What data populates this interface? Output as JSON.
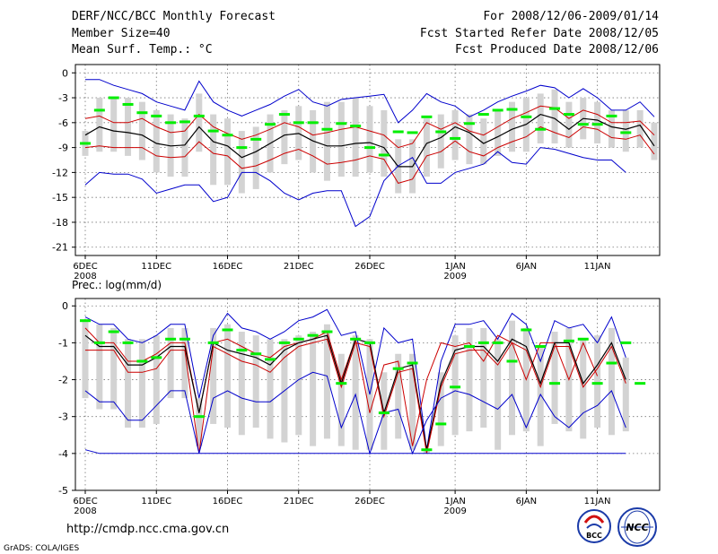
{
  "header": {
    "title": "DERF/NCC/BCC Monthly Forecast",
    "member_size": "Member Size=40",
    "variable": "Mean Surf. Temp.: °C",
    "period": "For 2008/12/06-2009/01/14",
    "started": "Fcst Started Refer Date 2008/12/05",
    "produced": "Fcst Produced Date 2008/12/06"
  },
  "footer": {
    "url": "http://cmdp.ncc.cma.gov.cn",
    "credit": "GrADS: COLA/IGES",
    "logo_bcc": "BCC",
    "logo_ncc": "NCC"
  },
  "colors": {
    "box": "#d3d3d3",
    "ensemble": "#00ee00",
    "mean": "#000000",
    "band": "#cc0000",
    "envelope": "#0000cc",
    "grid": "#777777"
  },
  "chart_data": [
    {
      "type": "line",
      "title": "Mean Surf. Temp.: °C",
      "x_start": "2008-12-06",
      "x_ticks": [
        "6DEC",
        "11DEC",
        "16DEC",
        "21DEC",
        "26DEC",
        "1JAN",
        "6JAN",
        "11JAN"
      ],
      "x_tick_days": [
        0,
        5,
        10,
        15,
        20,
        26,
        31,
        36
      ],
      "x_year_labels": [
        {
          "day": 0,
          "label": "2008"
        },
        {
          "day": 26,
          "label": "2009"
        }
      ],
      "ylim": [
        -22,
        1
      ],
      "y_ticks": [
        0,
        -3,
        -6,
        -9,
        -12,
        -15,
        -18,
        -21
      ],
      "series": [
        {
          "name": "max",
          "values": [
            -0.8,
            -0.8,
            -1.5,
            -2,
            -2.5,
            -3.5,
            -4,
            -4.5,
            -1,
            -3.5,
            -4.5,
            -5.2,
            -4.5,
            -3.8,
            -2.8,
            -2,
            -3.5,
            -4,
            -3.2,
            -3,
            -2.8,
            -2.6,
            -6,
            -4.5,
            -2.5,
            -3.5,
            -4,
            -5.3,
            -4.5,
            -3.5,
            -2.8,
            -2.2,
            -1.5,
            -1.8,
            -3,
            -1.9,
            -3,
            -4.5,
            -4.5,
            -3.5,
            -5.3
          ]
        },
        {
          "name": "upper",
          "values": [
            -5.5,
            -5.2,
            -6,
            -6,
            -5.5,
            -6.5,
            -7.2,
            -7,
            -5,
            -6.5,
            -7.3,
            -8,
            -7.5,
            -6.8,
            -6,
            -6.5,
            -7.5,
            -7.2,
            -6.8,
            -6.5,
            -7,
            -7.5,
            -9,
            -8.5,
            -6,
            -6.8,
            -6,
            -7,
            -7.5,
            -6.5,
            -5.5,
            -4.8,
            -4,
            -4.2,
            -5.5,
            -4.5,
            -5,
            -6,
            -6,
            -5.8,
            -7.5
          ]
        },
        {
          "name": "mean",
          "values": [
            -7.5,
            -6.5,
            -7,
            -7.2,
            -7.5,
            -8.5,
            -8.8,
            -8.7,
            -6.5,
            -8.3,
            -8.8,
            -10.2,
            -9.5,
            -8.5,
            -7.5,
            -7.3,
            -8.2,
            -8.8,
            -8.8,
            -8.5,
            -8.4,
            -9,
            -11.3,
            -11.3,
            -8.5,
            -7.8,
            -6.5,
            -7.2,
            -8.5,
            -7.7,
            -6.8,
            -6.2,
            -5,
            -5.5,
            -6.8,
            -5.5,
            -5.7,
            -6.5,
            -6.8,
            -6.3,
            -8.8
          ]
        },
        {
          "name": "lower",
          "values": [
            -9,
            -8.8,
            -9,
            -9,
            -9,
            -10,
            -10.2,
            -10.1,
            -8.3,
            -9.7,
            -10,
            -11.5,
            -11.2,
            -10.5,
            -9.7,
            -9.2,
            -10,
            -11,
            -10.8,
            -10.5,
            -10,
            -10.4,
            -13.3,
            -12.8,
            -10,
            -9.5,
            -8.2,
            -9.5,
            -10,
            -9,
            -8.3,
            -7.7,
            -6.5,
            -7.2,
            -7.8,
            -6.5,
            -6.8,
            -7.8,
            -8,
            -7.5,
            -9.8
          ]
        },
        {
          "name": "min",
          "values": [
            -13.5,
            -12,
            -12.2,
            -12.2,
            -12.8,
            -14.5,
            -14,
            -13.5,
            -13.5,
            -15.5,
            -15,
            -12,
            -12,
            -13,
            -14.5,
            -15.3,
            -14.5,
            -14.2,
            -14.2,
            -18.5,
            -17.3,
            -13,
            -11.2,
            -10.2,
            -13.3,
            -13.3,
            -12,
            -11.5,
            -11,
            -9.5,
            -10.8,
            -11,
            -9,
            -9.2,
            -9.7,
            -10.2,
            -10.5,
            -10.5,
            -12
          ]
        },
        {
          "name": "ensemble",
          "values": [
            -8.5,
            -4.5,
            -3,
            -3.8,
            -4.8,
            -5.2,
            -6,
            -5.9,
            -5.2,
            -7,
            -7.5,
            -9,
            -8,
            -6.2,
            -5,
            -6,
            -6,
            -6.8,
            -6.1,
            -6.4,
            -9,
            -9.9,
            -7.1,
            -7.2,
            -5.3,
            -7.1,
            -7.9,
            -6.1,
            -5,
            -4.5,
            -4.4,
            -5.3,
            -6.8,
            -4.3,
            -5,
            -6.2,
            -6.2,
            -5.2,
            -7.2
          ]
        }
      ],
      "box_low": [
        -10,
        -9.5,
        -9.5,
        -10,
        -10.5,
        -12,
        -12.5,
        -12.5,
        -9.5,
        -13.5,
        -13.5,
        -14.5,
        -14,
        -12,
        -11,
        -10.5,
        -12,
        -13,
        -12.5,
        -12.5,
        -12,
        -12.5,
        -14.5,
        -14.5,
        -12.5,
        -11.5,
        -10.5,
        -11,
        -11,
        -10,
        -9.5,
        -9.5,
        -8.5,
        -8.5,
        -9,
        -8,
        -8.5,
        -9,
        -9.5,
        -9,
        -10.5
      ],
      "box_high": [
        -7,
        -3,
        -3,
        -3,
        -3.5,
        -4.5,
        -5,
        -5.5,
        -2.5,
        -5,
        -5.5,
        -7,
        -6.5,
        -5,
        -4.5,
        -4,
        -4.5,
        -3.5,
        -3.5,
        -3,
        -4,
        -4.5,
        -8,
        -8,
        -5.5,
        -5,
        -4.5,
        -5,
        -5.5,
        -4.5,
        -3.5,
        -3,
        -2.5,
        -2,
        -3.5,
        -3,
        -3.5,
        -4.5,
        -4.5,
        -4.5,
        -6
      ]
    },
    {
      "type": "line",
      "title": "Prec.: log(mm/d)",
      "x_start": "2008-12-06",
      "x_ticks": [
        "6DEC",
        "11DEC",
        "16DEC",
        "21DEC",
        "26DEC",
        "1JAN",
        "6JAN",
        "11JAN"
      ],
      "x_tick_days": [
        0,
        5,
        10,
        15,
        20,
        26,
        31,
        36
      ],
      "x_year_labels": [
        {
          "day": 0,
          "label": "2008"
        },
        {
          "day": 26,
          "label": "2009"
        }
      ],
      "ylim": [
        -5,
        0.2
      ],
      "y_ticks": [
        0,
        -1,
        -2,
        -3,
        -4,
        -5
      ],
      "series": [
        {
          "name": "max",
          "values": [
            -0.3,
            -0.5,
            -0.5,
            -0.9,
            -1,
            -0.8,
            -0.5,
            -0.5,
            -2.5,
            -0.8,
            -0.2,
            -0.6,
            -0.7,
            -0.9,
            -0.7,
            -0.4,
            -0.3,
            -0.1,
            -0.8,
            -0.7,
            -2.4,
            -0.6,
            -1,
            -0.9,
            -3.9,
            -1.5,
            -0.5,
            -0.5,
            -0.4,
            -0.9,
            -0.2,
            -0.5,
            -1.5,
            -0.4,
            -0.6,
            -0.5,
            -1,
            -0.3,
            -1.4
          ]
        },
        {
          "name": "upper",
          "values": [
            -0.6,
            -1,
            -1,
            -1.5,
            -1.5,
            -1.3,
            -1,
            -1,
            -2.9,
            -1,
            -0.9,
            -1.1,
            -1.3,
            -1.4,
            -1.1,
            -1,
            -0.9,
            -0.7,
            -2,
            -0.9,
            -2.9,
            -1.6,
            -1.5,
            -3.8,
            -2,
            -1,
            -1.1,
            -1,
            -1.5,
            -0.8,
            -1,
            -2,
            -1,
            -1,
            -2,
            -1,
            -1.9
          ]
        },
        {
          "name": "mean",
          "values": [
            -0.8,
            -1.1,
            -1.1,
            -1.6,
            -1.6,
            -1.4,
            -1.1,
            -1.1,
            -2.9,
            -1,
            -1.2,
            -1.3,
            -1.4,
            -1.6,
            -1.2,
            -1,
            -0.9,
            -0.8,
            -2.1,
            -0.9,
            -1,
            -2.9,
            -1.7,
            -1.6,
            -3.9,
            -2.1,
            -1.2,
            -1.1,
            -1.1,
            -1.5,
            -0.9,
            -1.1,
            -2.1,
            -1,
            -1,
            -2.1,
            -1.6,
            -1,
            -2
          ]
        },
        {
          "name": "lower",
          "values": [
            -1.2,
            -1.2,
            -1.2,
            -1.8,
            -1.8,
            -1.7,
            -1.2,
            -1.2,
            -4,
            -1.1,
            -1.3,
            -1.5,
            -1.6,
            -1.8,
            -1.4,
            -1.1,
            -1,
            -0.9,
            -2.2,
            -1,
            -1.1,
            -3,
            -1.8,
            -1.7,
            -4,
            -2.2,
            -1.3,
            -1.2,
            -1.2,
            -1.6,
            -1,
            -1.2,
            -2.2,
            -1.1,
            -1.1,
            -2.2,
            -1.7,
            -1.1,
            -2.1
          ]
        },
        {
          "name": "min",
          "values": [
            -2.3,
            -2.6,
            -2.6,
            -3.1,
            -3.1,
            -2.7,
            -2.3,
            -2.3,
            -4,
            -2.5,
            -2.3,
            -2.5,
            -2.6,
            -2.6,
            -2.3,
            -2,
            -1.8,
            -1.9,
            -3.3,
            -2.4,
            -4,
            -2.9,
            -2.8,
            -4,
            -3.1,
            -2.5,
            -2.3,
            -2.4,
            -2.6,
            -2.8,
            -2.4,
            -3.3,
            -2.4,
            -3,
            -3.3,
            -2.9,
            -2.7,
            -2.3,
            -3.3
          ]
        },
        {
          "name": "floor",
          "values": [
            -3.9,
            -4,
            -4,
            -4,
            -4,
            -4,
            -4,
            -4,
            -4,
            -4,
            -4,
            -4,
            -4,
            -4,
            -4,
            -4,
            -4,
            -4,
            -4,
            -4,
            -4,
            -4,
            -4,
            -4,
            -4,
            -4,
            -4,
            -4,
            -4,
            -4,
            -4,
            -4,
            -4,
            -4,
            -4,
            -4,
            -4,
            -4,
            -4
          ]
        },
        {
          "name": "ensemble",
          "values": [
            -0.4,
            -1,
            -0.7,
            -1,
            -1.5,
            -1.4,
            -0.9,
            -0.9,
            -3,
            -1,
            -0.65,
            -1.2,
            -1.3,
            -1.45,
            -1,
            -0.9,
            -0.8,
            -0.7,
            -2.1,
            -0.9,
            -1,
            -2.9,
            -1.7,
            -1.55,
            -3.9,
            -3.2,
            -2.2,
            -1.1,
            -1,
            -1,
            -1.5,
            -0.65,
            -1.1,
            -2.1,
            -0.95,
            -0.9,
            -2.1,
            -1.55,
            -1,
            -2.1
          ]
        }
      ],
      "box_low": [
        -2.5,
        -2.8,
        -2.8,
        -3.3,
        -3.3,
        -3.2,
        -2.5,
        -2.5,
        -3.8,
        -3.2,
        -3.3,
        -3.5,
        -3.3,
        -3.6,
        -3.7,
        -3.5,
        -3.8,
        -3.6,
        -3.8,
        -3.9,
        -3.9,
        -3.9,
        -3.6,
        -3.9,
        -4,
        -3.8,
        -3.5,
        -3.4,
        -3.3,
        -3.9,
        -3.5,
        -3.4,
        -3.8,
        -3.2,
        -3.4,
        -3.6,
        -3.3,
        -3.5,
        -3.4
      ],
      "box_high": [
        -0.4,
        -0.5,
        -0.6,
        -0.9,
        -0.9,
        -0.8,
        -0.6,
        -0.6,
        -2.5,
        -0.6,
        -0.5,
        -0.7,
        -0.8,
        -0.9,
        -0.9,
        -0.8,
        -0.7,
        -0.5,
        -1.3,
        -0.8,
        -0.9,
        -1.8,
        -1.3,
        -1.3,
        -3.9,
        -1.8,
        -0.8,
        -0.6,
        -0.6,
        -0.9,
        -0.4,
        -0.6,
        -1.1,
        -0.7,
        -0.6,
        -0.9,
        -0.8,
        -0.6,
        -1.4
      ]
    }
  ]
}
